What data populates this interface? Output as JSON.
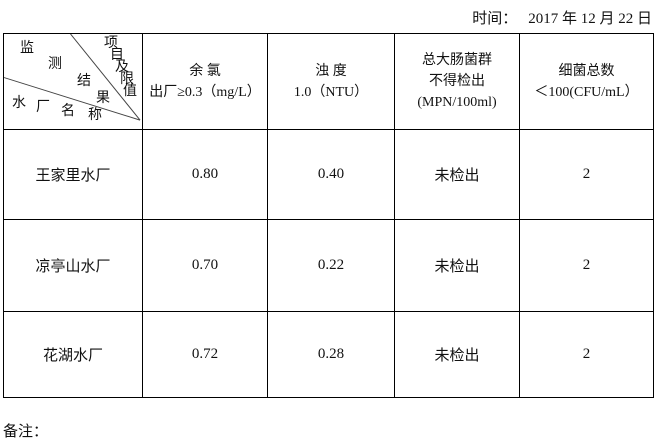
{
  "page": {
    "time_label": "时间：",
    "date": "2017 年 12 月 22 日",
    "remarks_label": "备注："
  },
  "corner": {
    "top_right": "项目及限值",
    "middle": "监测结果",
    "bottom_left": "水厂名称"
  },
  "table": {
    "columns": [
      {
        "lines": [
          "余 氯",
          "出厂≥0.3（mg/L）"
        ]
      },
      {
        "lines": [
          "浊 度",
          "1.0（NTU）"
        ]
      },
      {
        "lines": [
          "总大肠菌群",
          "不得检出",
          "(MPN/100ml)"
        ]
      },
      {
        "lines": [
          "细菌总数",
          "＜100(CFU/mL）"
        ]
      }
    ],
    "rows": [
      {
        "name": "王家里水厂",
        "values": [
          "0.80",
          "0.40",
          "未检出",
          "2"
        ]
      },
      {
        "name": "凉亭山水厂",
        "values": [
          "0.70",
          "0.22",
          "未检出",
          "2"
        ]
      },
      {
        "name": "花湖水厂",
        "values": [
          "0.72",
          "0.28",
          "未检出",
          "2"
        ]
      }
    ]
  }
}
